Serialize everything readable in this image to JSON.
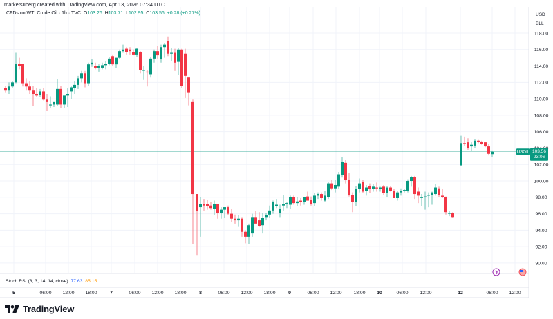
{
  "header": {
    "credit": "marketsuberg created with TradingView.com, Apr 13, 2026 07:34 UTC",
    "symbol_desc": "CFDs on WTI Crude Oil · 1h · TVC",
    "ohlc": {
      "o_label": "O",
      "o": "103.26",
      "h_label": "H",
      "h": "103.71",
      "l_label": "L",
      "l": "102.95",
      "c_label": "C",
      "c": "103.56",
      "change": "+0.28 (+0.27%)"
    }
  },
  "price_axis": {
    "currency": "USD",
    "unit": "BLL",
    "ticks": [
      "118.00",
      "116.00",
      "114.00",
      "112.00",
      "110.00",
      "108.00",
      "106.00",
      "104.00",
      "102.00",
      "100.00",
      "98.00",
      "96.00",
      "94.00",
      "92.00",
      "90.00"
    ],
    "current": {
      "symbol": "USOIL",
      "price": "103.56",
      "countdown": "23:06",
      "value": 103.56
    }
  },
  "time_axis": {
    "labels": [
      {
        "text": "5",
        "x": 20,
        "bold": true
      },
      {
        "text": "06:00",
        "x": 66,
        "bold": false
      },
      {
        "text": "12:00",
        "x": 99,
        "bold": false
      },
      {
        "text": "18:00",
        "x": 132,
        "bold": false
      },
      {
        "text": "7",
        "x": 161,
        "bold": true
      },
      {
        "text": "06:00",
        "x": 195,
        "bold": false
      },
      {
        "text": "12:00",
        "x": 228,
        "bold": false
      },
      {
        "text": "18:00",
        "x": 261,
        "bold": false
      },
      {
        "text": "8",
        "x": 290,
        "bold": true
      },
      {
        "text": "06:00",
        "x": 324,
        "bold": false
      },
      {
        "text": "12:00",
        "x": 357,
        "bold": false
      },
      {
        "text": "18:00",
        "x": 390,
        "bold": false
      },
      {
        "text": "9",
        "x": 419,
        "bold": true
      },
      {
        "text": "06:00",
        "x": 453,
        "bold": false
      },
      {
        "text": "12:00",
        "x": 486,
        "bold": false
      },
      {
        "text": "18:00",
        "x": 520,
        "bold": false
      },
      {
        "text": "10",
        "x": 549,
        "bold": true
      },
      {
        "text": "06:00",
        "x": 582,
        "bold": false
      },
      {
        "text": "12:00",
        "x": 616,
        "bold": false
      },
      {
        "text": "12",
        "x": 666,
        "bold": true
      },
      {
        "text": "06:00",
        "x": 712,
        "bold": false
      },
      {
        "text": "12:00",
        "x": 745,
        "bold": false
      }
    ]
  },
  "indicator": {
    "name": "Stoch RSI (3, 3, 14, 14, close)",
    "k": "77.63",
    "d": "85.15"
  },
  "branding": {
    "name": "TradingView"
  },
  "colors": {
    "up": "#089981",
    "down": "#f23645",
    "grid": "#f0f3fa",
    "price_line": "#089981"
  },
  "chart_data": {
    "type": "candlestick",
    "title": "CFDs on WTI Crude Oil · 1h · TVC",
    "xlabel": "",
    "ylabel": "USD / BLL",
    "ylim": [
      89,
      119
    ],
    "grid": true,
    "x_categories": [
      "5",
      "06:00",
      "12:00",
      "18:00",
      "7",
      "06:00",
      "12:00",
      "18:00",
      "8",
      "06:00",
      "12:00",
      "18:00",
      "9",
      "06:00",
      "12:00",
      "18:00",
      "10",
      "06:00",
      "12:00",
      "12",
      "06:00",
      "12:00"
    ],
    "candles": [
      {
        "x": 8,
        "o": 111.3,
        "h": 111.6,
        "l": 110.8,
        "c": 111.0
      },
      {
        "x": 13,
        "o": 111.0,
        "h": 112.0,
        "l": 110.6,
        "c": 111.5
      },
      {
        "x": 18,
        "o": 111.5,
        "h": 112.2,
        "l": 111.3,
        "c": 112.0
      },
      {
        "x": 23,
        "o": 112.0,
        "h": 115.6,
        "l": 111.9,
        "c": 114.3
      },
      {
        "x": 28,
        "o": 114.3,
        "h": 115.0,
        "l": 113.6,
        "c": 114.0
      },
      {
        "x": 33,
        "o": 114.3,
        "h": 114.3,
        "l": 111.5,
        "c": 111.9
      },
      {
        "x": 38,
        "o": 111.9,
        "h": 112.5,
        "l": 111.0,
        "c": 111.5
      },
      {
        "x": 43,
        "o": 111.5,
        "h": 112.2,
        "l": 110.6,
        "c": 111.0
      },
      {
        "x": 48,
        "o": 111.0,
        "h": 111.6,
        "l": 109.1,
        "c": 110.6
      },
      {
        "x": 53,
        "o": 110.6,
        "h": 111.3,
        "l": 110.2,
        "c": 110.4
      },
      {
        "x": 58,
        "o": 110.5,
        "h": 111.2,
        "l": 110.2,
        "c": 110.9
      },
      {
        "x": 63,
        "o": 110.9,
        "h": 111.3,
        "l": 109.8,
        "c": 109.9
      },
      {
        "x": 68,
        "o": 109.9,
        "h": 110.6,
        "l": 108.5,
        "c": 109.6
      },
      {
        "x": 73,
        "o": 109.2,
        "h": 110.3,
        "l": 108.9,
        "c": 109.3
      },
      {
        "x": 78,
        "o": 109.3,
        "h": 109.6,
        "l": 109.0,
        "c": 109.6
      },
      {
        "x": 83,
        "o": 109.3,
        "h": 112.4,
        "l": 109.1,
        "c": 111.2
      },
      {
        "x": 88,
        "o": 111.2,
        "h": 111.6,
        "l": 108.9,
        "c": 109.3
      },
      {
        "x": 93,
        "o": 109.3,
        "h": 110.0,
        "l": 108.9,
        "c": 110.4
      },
      {
        "x": 98,
        "o": 110.4,
        "h": 111.3,
        "l": 109.0,
        "c": 110.6
      },
      {
        "x": 103,
        "o": 110.9,
        "h": 111.6,
        "l": 110.0,
        "c": 111.4
      },
      {
        "x": 108,
        "o": 111.3,
        "h": 112.2,
        "l": 110.6,
        "c": 111.7
      },
      {
        "x": 113,
        "o": 111.7,
        "h": 112.8,
        "l": 111.2,
        "c": 112.5
      },
      {
        "x": 118,
        "o": 112.5,
        "h": 113.4,
        "l": 112.0,
        "c": 113.1
      },
      {
        "x": 123,
        "o": 113.1,
        "h": 113.4,
        "l": 111.4,
        "c": 111.9
      },
      {
        "x": 128,
        "o": 111.9,
        "h": 114.4,
        "l": 111.6,
        "c": 114.2
      },
      {
        "x": 133,
        "o": 114.2,
        "h": 114.8,
        "l": 113.9,
        "c": 114.4
      },
      {
        "x": 138,
        "o": 114.0,
        "h": 114.4,
        "l": 113.6,
        "c": 113.8
      },
      {
        "x": 143,
        "o": 113.8,
        "h": 114.2,
        "l": 113.3,
        "c": 114.0
      },
      {
        "x": 148,
        "o": 113.8,
        "h": 114.4,
        "l": 113.6,
        "c": 114.1
      },
      {
        "x": 153,
        "o": 114.1,
        "h": 114.6,
        "l": 113.6,
        "c": 114.3
      },
      {
        "x": 158,
        "o": 114.3,
        "h": 115.1,
        "l": 114.1,
        "c": 114.9
      },
      {
        "x": 163,
        "o": 115.2,
        "h": 115.4,
        "l": 114.0,
        "c": 114.2
      },
      {
        "x": 168,
        "o": 114.2,
        "h": 115.0,
        "l": 113.8,
        "c": 115.0
      },
      {
        "x": 173,
        "o": 115.0,
        "h": 116.0,
        "l": 114.8,
        "c": 115.8
      },
      {
        "x": 178,
        "o": 115.8,
        "h": 116.6,
        "l": 115.6,
        "c": 116.0
      },
      {
        "x": 183,
        "o": 116.1,
        "h": 116.3,
        "l": 115.4,
        "c": 115.7
      },
      {
        "x": 188,
        "o": 116.0,
        "h": 116.3,
        "l": 115.4,
        "c": 115.8
      },
      {
        "x": 193,
        "o": 115.7,
        "h": 116.0,
        "l": 115.3,
        "c": 115.4
      },
      {
        "x": 198,
        "o": 115.4,
        "h": 116.2,
        "l": 115.1,
        "c": 116.1
      },
      {
        "x": 203,
        "o": 115.7,
        "h": 115.8,
        "l": 113.1,
        "c": 113.5
      },
      {
        "x": 208,
        "o": 113.5,
        "h": 114.0,
        "l": 112.3,
        "c": 113.5
      },
      {
        "x": 213,
        "o": 113.3,
        "h": 113.5,
        "l": 111.5,
        "c": 113.2
      },
      {
        "x": 218,
        "o": 113.0,
        "h": 115.1,
        "l": 112.6,
        "c": 114.9
      },
      {
        "x": 223,
        "o": 114.9,
        "h": 116.0,
        "l": 114.4,
        "c": 115.8
      },
      {
        "x": 228,
        "o": 115.8,
        "h": 116.4,
        "l": 114.9,
        "c": 115.3
      },
      {
        "x": 233,
        "o": 114.8,
        "h": 116.6,
        "l": 114.4,
        "c": 116.3
      },
      {
        "x": 238,
        "o": 116.3,
        "h": 116.8,
        "l": 115.0,
        "c": 116.6
      },
      {
        "x": 243,
        "o": 117.0,
        "h": 117.6,
        "l": 115.2,
        "c": 115.5
      },
      {
        "x": 248,
        "o": 115.5,
        "h": 116.2,
        "l": 114.6,
        "c": 115.6
      },
      {
        "x": 253,
        "o": 115.6,
        "h": 116.1,
        "l": 113.4,
        "c": 114.4
      },
      {
        "x": 258,
        "o": 114.5,
        "h": 116.2,
        "l": 112.9,
        "c": 116.0
      },
      {
        "x": 263,
        "o": 116.0,
        "h": 116.1,
        "l": 111.3,
        "c": 111.6
      },
      {
        "x": 268,
        "o": 115.5,
        "h": 116.1,
        "l": 110.1,
        "c": 112.8
      },
      {
        "x": 273,
        "o": 112.6,
        "h": 112.6,
        "l": 109.2,
        "c": 110.8
      },
      {
        "x": 279,
        "o": 109.6,
        "h": 109.9,
        "l": 92.3,
        "c": 98.4
      },
      {
        "x": 285,
        "o": 98.4,
        "h": 98.4,
        "l": 90.9,
        "c": 96.3
      },
      {
        "x": 290,
        "o": 96.8,
        "h": 98.0,
        "l": 93.2,
        "c": 97.2
      },
      {
        "x": 295,
        "o": 97.2,
        "h": 97.8,
        "l": 96.4,
        "c": 97.0
      },
      {
        "x": 300,
        "o": 97.2,
        "h": 97.7,
        "l": 96.5,
        "c": 96.9
      },
      {
        "x": 305,
        "o": 97.0,
        "h": 97.4,
        "l": 96.5,
        "c": 96.7
      },
      {
        "x": 310,
        "o": 96.6,
        "h": 97.6,
        "l": 95.8,
        "c": 97.2
      },
      {
        "x": 315,
        "o": 97.2,
        "h": 97.2,
        "l": 95.4,
        "c": 96.1
      },
      {
        "x": 320,
        "o": 96.1,
        "h": 96.8,
        "l": 95.4,
        "c": 96.5
      },
      {
        "x": 325,
        "o": 96.5,
        "h": 96.8,
        "l": 95.5,
        "c": 96.8
      },
      {
        "x": 330,
        "o": 96.8,
        "h": 97.0,
        "l": 95.8,
        "c": 96.0
      },
      {
        "x": 335,
        "o": 96.0,
        "h": 96.6,
        "l": 95.0,
        "c": 95.4
      },
      {
        "x": 340,
        "o": 95.4,
        "h": 95.9,
        "l": 94.8,
        "c": 95.2
      },
      {
        "x": 345,
        "o": 95.2,
        "h": 95.8,
        "l": 94.4,
        "c": 95.4
      },
      {
        "x": 350,
        "o": 95.4,
        "h": 95.6,
        "l": 93.2,
        "c": 93.8
      },
      {
        "x": 355,
        "o": 93.8,
        "h": 94.0,
        "l": 92.4,
        "c": 93.2
      },
      {
        "x": 360,
        "o": 93.2,
        "h": 94.8,
        "l": 92.3,
        "c": 94.6
      },
      {
        "x": 365,
        "o": 93.6,
        "h": 96.0,
        "l": 93.2,
        "c": 95.6
      },
      {
        "x": 370,
        "o": 95.6,
        "h": 96.3,
        "l": 95.0,
        "c": 94.8
      },
      {
        "x": 375,
        "o": 95.2,
        "h": 96.2,
        "l": 94.4,
        "c": 94.5
      },
      {
        "x": 380,
        "o": 94.6,
        "h": 96.1,
        "l": 93.6,
        "c": 95.5
      },
      {
        "x": 385,
        "o": 95.6,
        "h": 96.1,
        "l": 95.2,
        "c": 95.8
      },
      {
        "x": 390,
        "o": 95.9,
        "h": 97.0,
        "l": 95.5,
        "c": 96.4
      },
      {
        "x": 395,
        "o": 96.4,
        "h": 97.6,
        "l": 96.0,
        "c": 97.4
      },
      {
        "x": 400,
        "o": 96.9,
        "h": 97.8,
        "l": 96.7,
        "c": 97.1
      },
      {
        "x": 405,
        "o": 96.1,
        "h": 97.1,
        "l": 95.6,
        "c": 96.6
      },
      {
        "x": 410,
        "o": 97.0,
        "h": 98.3,
        "l": 96.4,
        "c": 97.2
      },
      {
        "x": 415,
        "o": 97.2,
        "h": 97.4,
        "l": 96.7,
        "c": 97.3
      },
      {
        "x": 420,
        "o": 97.1,
        "h": 98.2,
        "l": 96.6,
        "c": 98.0
      },
      {
        "x": 425,
        "o": 98.0,
        "h": 98.2,
        "l": 97.1,
        "c": 97.3
      },
      {
        "x": 430,
        "o": 97.3,
        "h": 98.0,
        "l": 96.9,
        "c": 97.5
      },
      {
        "x": 435,
        "o": 97.6,
        "h": 97.9,
        "l": 97.0,
        "c": 97.4
      },
      {
        "x": 440,
        "o": 97.4,
        "h": 98.0,
        "l": 97.1,
        "c": 98.0
      },
      {
        "x": 445,
        "o": 98.1,
        "h": 98.7,
        "l": 97.7,
        "c": 97.6
      },
      {
        "x": 450,
        "o": 97.7,
        "h": 98.1,
        "l": 97.0,
        "c": 97.2
      },
      {
        "x": 455,
        "o": 97.3,
        "h": 98.5,
        "l": 96.9,
        "c": 98.2
      },
      {
        "x": 460,
        "o": 98.2,
        "h": 98.6,
        "l": 97.8,
        "c": 98.4
      },
      {
        "x": 465,
        "o": 98.4,
        "h": 98.6,
        "l": 97.6,
        "c": 97.9
      },
      {
        "x": 470,
        "o": 97.6,
        "h": 98.8,
        "l": 97.4,
        "c": 98.2
      },
      {
        "x": 475,
        "o": 98.0,
        "h": 99.9,
        "l": 97.8,
        "c": 99.7
      },
      {
        "x": 480,
        "o": 99.7,
        "h": 100.1,
        "l": 98.9,
        "c": 99.1
      },
      {
        "x": 485,
        "o": 99.1,
        "h": 100.1,
        "l": 98.6,
        "c": 99.5
      },
      {
        "x": 490,
        "o": 99.3,
        "h": 101.1,
        "l": 99.0,
        "c": 100.8
      },
      {
        "x": 495,
        "o": 100.7,
        "h": 102.9,
        "l": 100.4,
        "c": 102.3
      },
      {
        "x": 500,
        "o": 102.2,
        "h": 102.6,
        "l": 99.7,
        "c": 100.1
      },
      {
        "x": 505,
        "o": 100.1,
        "h": 101.0,
        "l": 98.1,
        "c": 98.3
      },
      {
        "x": 510,
        "o": 98.3,
        "h": 98.6,
        "l": 96.2,
        "c": 97.4
      },
      {
        "x": 515,
        "o": 97.4,
        "h": 99.4,
        "l": 96.9,
        "c": 99.0
      },
      {
        "x": 520,
        "o": 99.0,
        "h": 100.3,
        "l": 98.6,
        "c": 99.7
      },
      {
        "x": 525,
        "o": 99.9,
        "h": 100.1,
        "l": 98.5,
        "c": 98.7
      },
      {
        "x": 530,
        "o": 98.8,
        "h": 99.5,
        "l": 98.2,
        "c": 99.2
      },
      {
        "x": 535,
        "o": 99.4,
        "h": 99.7,
        "l": 98.5,
        "c": 99.0
      },
      {
        "x": 540,
        "o": 99.0,
        "h": 99.6,
        "l": 98.7,
        "c": 99.3
      },
      {
        "x": 545,
        "o": 99.2,
        "h": 99.8,
        "l": 98.7,
        "c": 99.1
      },
      {
        "x": 550,
        "o": 99.0,
        "h": 99.3,
        "l": 98.7,
        "c": 99.2
      },
      {
        "x": 555,
        "o": 99.3,
        "h": 99.5,
        "l": 98.3,
        "c": 98.5
      },
      {
        "x": 560,
        "o": 98.5,
        "h": 99.4,
        "l": 98.0,
        "c": 99.2
      },
      {
        "x": 565,
        "o": 99.2,
        "h": 99.4,
        "l": 98.7,
        "c": 98.8
      },
      {
        "x": 570,
        "o": 98.8,
        "h": 99.0,
        "l": 97.9,
        "c": 97.9
      },
      {
        "x": 575,
        "o": 97.9,
        "h": 98.8,
        "l": 97.6,
        "c": 98.6
      },
      {
        "x": 580,
        "o": 98.6,
        "h": 99.1,
        "l": 98.2,
        "c": 98.8
      },
      {
        "x": 585,
        "o": 98.8,
        "h": 99.0,
        "l": 98.6,
        "c": 98.9
      },
      {
        "x": 590,
        "o": 98.8,
        "h": 100.2,
        "l": 98.6,
        "c": 100.0
      },
      {
        "x": 595,
        "o": 100.0,
        "h": 100.6,
        "l": 99.3,
        "c": 100.5
      },
      {
        "x": 600,
        "o": 100.5,
        "h": 100.6,
        "l": 97.8,
        "c": 98.4
      },
      {
        "x": 605,
        "o": 98.7,
        "h": 99.2,
        "l": 97.3,
        "c": 98.2
      },
      {
        "x": 610,
        "o": 98.0,
        "h": 98.4,
        "l": 96.9,
        "c": 98.0
      },
      {
        "x": 615,
        "o": 98.0,
        "h": 98.7,
        "l": 96.5,
        "c": 98.1
      },
      {
        "x": 620,
        "o": 98.2,
        "h": 98.6,
        "l": 96.8,
        "c": 98.3
      },
      {
        "x": 625,
        "o": 98.3,
        "h": 98.7,
        "l": 97.1,
        "c": 98.6
      },
      {
        "x": 630,
        "o": 98.4,
        "h": 99.6,
        "l": 98.2,
        "c": 99.2
      },
      {
        "x": 635,
        "o": 99.1,
        "h": 99.3,
        "l": 98.0,
        "c": 98.3
      },
      {
        "x": 640,
        "o": 98.2,
        "h": 99.0,
        "l": 97.9,
        "c": 98.0
      },
      {
        "x": 645,
        "o": 98.0,
        "h": 98.1,
        "l": 95.9,
        "c": 96.2
      },
      {
        "x": 650,
        "o": 96.0,
        "h": 96.3,
        "l": 95.7,
        "c": 96.1
      },
      {
        "x": 655,
        "o": 96.1,
        "h": 96.2,
        "l": 95.5,
        "c": 95.6
      },
      {
        "x": 667,
        "o": 101.9,
        "h": 105.5,
        "l": 101.8,
        "c": 104.6
      },
      {
        "x": 672,
        "o": 104.6,
        "h": 105.4,
        "l": 104.3,
        "c": 104.5
      },
      {
        "x": 677,
        "o": 104.7,
        "h": 105.2,
        "l": 103.8,
        "c": 104.0
      },
      {
        "x": 682,
        "o": 104.2,
        "h": 104.7,
        "l": 103.7,
        "c": 104.4
      },
      {
        "x": 687,
        "o": 104.3,
        "h": 105.1,
        "l": 104.0,
        "c": 104.9
      },
      {
        "x": 692,
        "o": 104.9,
        "h": 105.0,
        "l": 104.6,
        "c": 104.8
      },
      {
        "x": 697,
        "o": 104.8,
        "h": 104.9,
        "l": 104.4,
        "c": 104.5
      },
      {
        "x": 702,
        "o": 104.7,
        "h": 104.8,
        "l": 104.1,
        "c": 104.2
      },
      {
        "x": 707,
        "o": 104.2,
        "h": 104.5,
        "l": 103.1,
        "c": 103.3
      },
      {
        "x": 712,
        "o": 103.26,
        "h": 103.71,
        "l": 102.95,
        "c": 103.56
      }
    ]
  }
}
